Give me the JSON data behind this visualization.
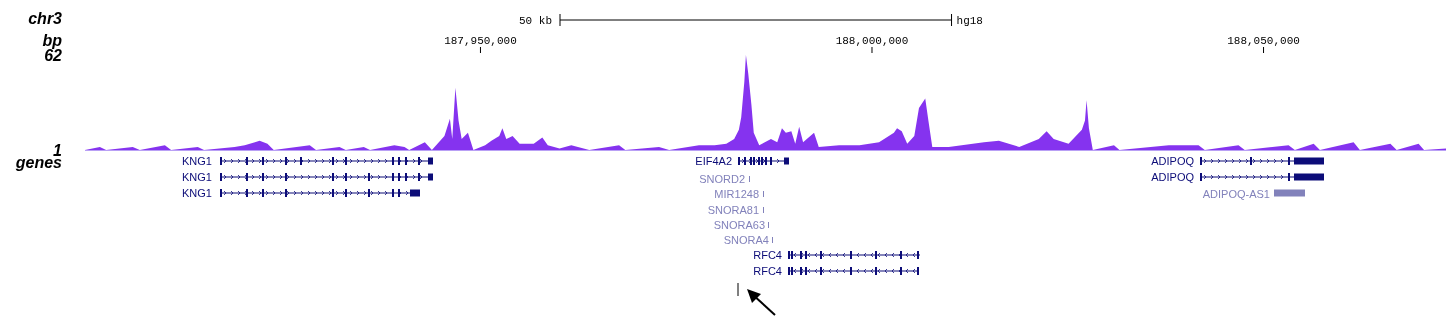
{
  "chart_data": {
    "type": "area",
    "title": "chr3",
    "xlabel": "bp",
    "color": "#8533ef",
    "x": [
      187899500,
      187901400,
      187902200,
      187905600,
      187906500,
      187909700,
      187910500,
      187913900,
      187914700,
      187918600,
      187919900,
      187921200,
      187921800,
      187922800,
      187923600,
      187928200,
      187929000,
      187932000,
      187932800,
      187935100,
      187935900,
      187939000,
      187940300,
      187940900,
      187942900,
      187943800,
      187945400,
      187946100,
      187946400,
      187946800,
      187947200,
      187947600,
      187948400,
      187949100,
      187950600,
      187951400,
      187952400,
      187952800,
      187953300,
      187954100,
      187955000,
      187956800,
      187957900,
      187958600,
      187960100,
      187961600,
      187963900,
      187967700,
      187968500,
      187972800,
      187974100,
      187977900,
      187979900,
      187981400,
      187982400,
      187983000,
      187983300,
      187983700,
      187983900,
      187984200,
      187984600,
      187984900,
      187985600,
      187987100,
      187987900,
      187988500,
      187989000,
      187989700,
      187990200,
      187990700,
      187991200,
      187992600,
      187993200,
      187995800,
      187998400,
      188000900,
      188002800,
      188003200,
      188003800,
      188004500,
      188005400,
      188006000,
      188006800,
      188007200,
      188007700,
      188009800,
      188014300,
      188016200,
      188018800,
      188021300,
      188022300,
      188023200,
      188025100,
      188026800,
      188027200,
      188027400,
      188027700,
      188028200,
      188030900,
      188031600,
      188037900,
      188041700,
      188042500,
      188046800,
      188047600,
      188053200,
      188054000,
      188056400,
      188057200,
      188061500,
      188062300,
      188066200,
      188067000,
      188069800,
      188070500,
      188073300
    ],
    "values": [
      1,
      3,
      1,
      3,
      1,
      4,
      1,
      3,
      1,
      3,
      4,
      6,
      7,
      5,
      1,
      4,
      1,
      3,
      1,
      3,
      1,
      4,
      3,
      1,
      6,
      1,
      10,
      21,
      8,
      41,
      20,
      8,
      12,
      1,
      4,
      7,
      10,
      15,
      8,
      10,
      5,
      5,
      9,
      4,
      2,
      4,
      1,
      4,
      1,
      3,
      1,
      4,
      4,
      5,
      8,
      14,
      22,
      45,
      62,
      50,
      30,
      12,
      4,
      8,
      6,
      15,
      12,
      13,
      5,
      16,
      6,
      12,
      3,
      4,
      4,
      6,
      12,
      15,
      13,
      5,
      10,
      28,
      34,
      20,
      3,
      3,
      6,
      7,
      3,
      8,
      13,
      8,
      5,
      14,
      20,
      33,
      15,
      1,
      4,
      1,
      4,
      4,
      1,
      4,
      1,
      4,
      1,
      5,
      1,
      6,
      1,
      5,
      1,
      5,
      1,
      2
    ],
    "xlim": [
      187899500,
      188073300
    ],
    "ylim": [
      1,
      62
    ],
    "xticks": [
      {
        "value": 187950000,
        "label": "187,950,000"
      },
      {
        "value": 188000000,
        "label": "188,000,000"
      },
      {
        "value": 188050000,
        "label": "188,050,000"
      }
    ],
    "yticks": [
      1,
      62
    ],
    "annotations": [
      "50 kb",
      "hg18",
      "genes",
      "KNG1",
      "KNG1",
      "KNG1",
      "EIF4A2",
      "SNORD2",
      "MIR1248",
      "SNORA81",
      "SNORA63",
      "SNORA4",
      "RFC4",
      "RFC4",
      "ADIPOQ",
      "ADIPOQ",
      "ADIPOQ-AS1"
    ]
  }
}
